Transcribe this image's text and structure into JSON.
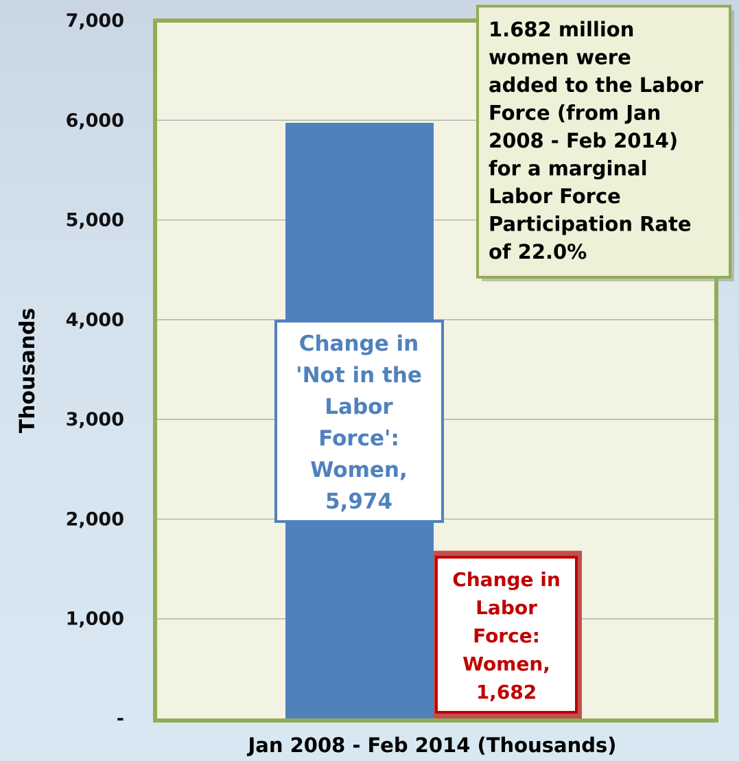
{
  "chart_data": {
    "type": "bar",
    "title": "",
    "xlabel": "Jan 2008 - Feb 2014 (Thousands)",
    "ylabel": "Thousands",
    "ylim": [
      0,
      7000
    ],
    "y_ticks": [
      0,
      1000,
      2000,
      3000,
      4000,
      5000,
      6000,
      7000
    ],
    "y_tick_labels": [
      "-",
      "1,000",
      "2,000",
      "3,000",
      "4,000",
      "5,000",
      "6,000",
      "7,000"
    ],
    "grid": true,
    "legend": "none",
    "series": [
      {
        "value": 5974,
        "color": "#4f81bd"
      },
      {
        "value": 1682,
        "color": "#c0504d"
      }
    ],
    "annotations": [
      {
        "lines": [
          "Change in",
          "'Not in the",
          "Labor",
          "Force':",
          "Women,",
          "5,974"
        ],
        "color": "#4f81bd"
      },
      {
        "lines": [
          "Change in",
          "Labor",
          "Force:",
          "Women,",
          "1,682"
        ],
        "color": "#c00000"
      },
      {
        "lines": [
          "1.682 million",
          "women were",
          "added to the Labor",
          "Force (from Jan",
          "2008 - Feb 2014)",
          "for a marginal",
          "Labor Force",
          "Participation Rate",
          "of 22.0%"
        ],
        "color": "#000000"
      }
    ],
    "plot_background": "#f2f3e2",
    "plot_border": "#93ac55"
  }
}
